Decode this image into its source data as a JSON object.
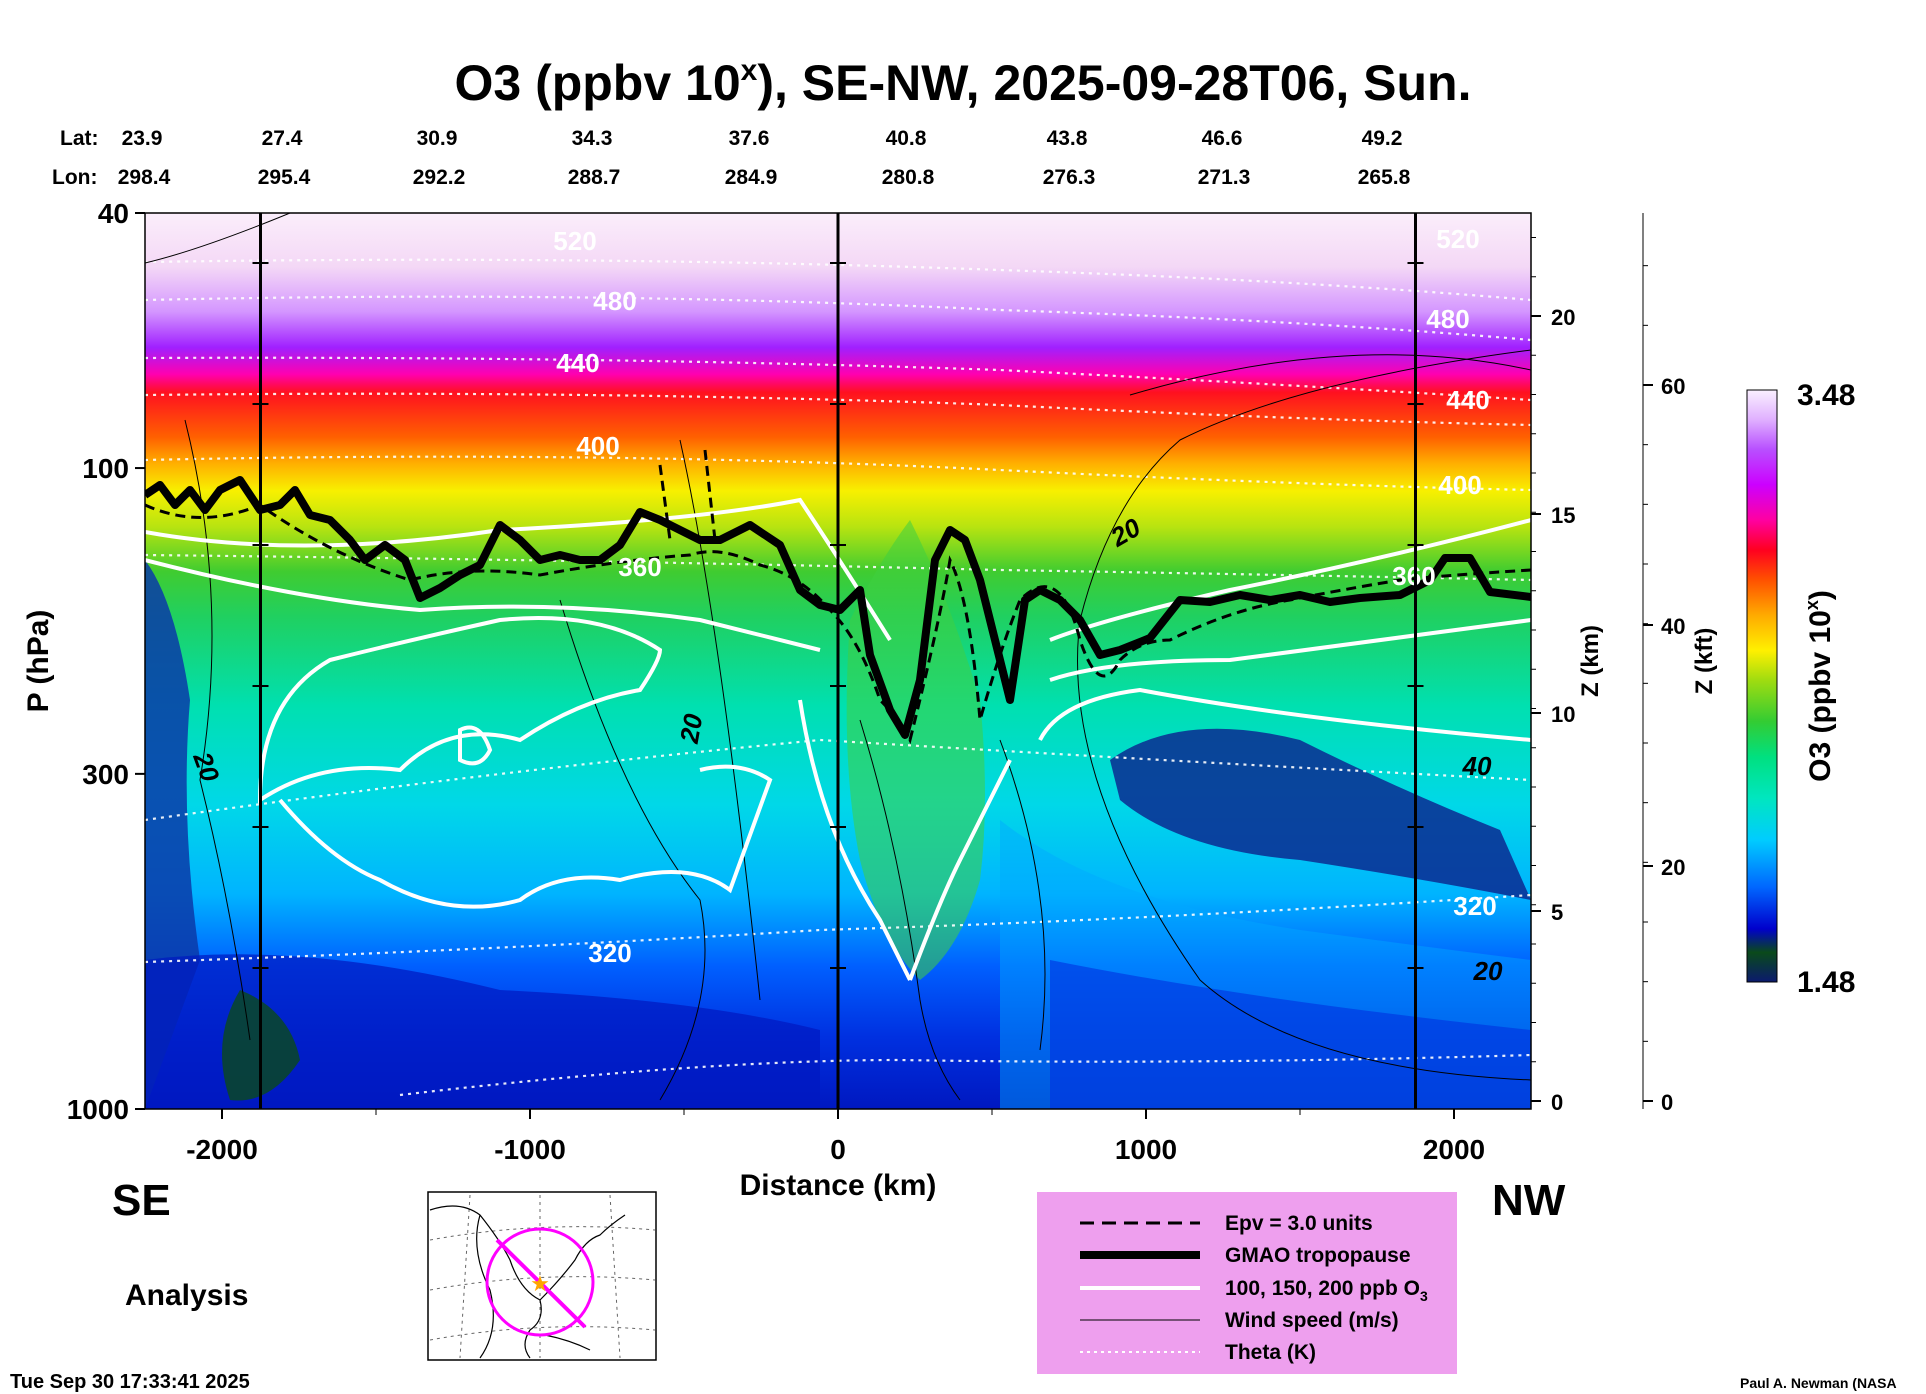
{
  "chart_data": {
    "type": "heatmap",
    "title": "O3 (ppbv 10",
    "title_sup": "x",
    "title_rest": "), SE-NW, 2025-09-28T06, Sun.",
    "xlabel": "Distance (km)",
    "ylabel": "P (hPa)",
    "y2label": "Z (km)",
    "y3label": "Z (kft)",
    "xlim": [
      -2250,
      2250
    ],
    "ylim_hpa": [
      1000,
      40
    ],
    "y_scale": "log",
    "x_ticks": [
      "-2000",
      "-1000",
      "0",
      "1000",
      "2000"
    ],
    "x_tick_values": [
      -2000,
      -1000,
      0,
      1000,
      2000
    ],
    "p_ticks": [
      "40",
      "100",
      "300",
      "1000"
    ],
    "p_tick_values": [
      40,
      100,
      300,
      1000
    ],
    "z_km_ticks": [
      "0",
      "5",
      "10",
      "15",
      "20"
    ],
    "z_kft_ticks": [
      "0",
      "20",
      "40",
      "60"
    ],
    "lat_label": "Lat:",
    "lon_label": "Lon:",
    "lat": [
      "23.9",
      "27.4",
      "30.9",
      "34.3",
      "37.6",
      "40.8",
      "43.8",
      "46.6",
      "49.2"
    ],
    "lon": [
      "298.4",
      "295.4",
      "292.2",
      "288.7",
      "284.9",
      "280.8",
      "276.3",
      "271.3",
      "265.8"
    ],
    "vertical_markers_km": [
      -1875,
      0,
      1875
    ],
    "colorbar": {
      "label": "O3 (ppbv 10",
      "label_sup": "x",
      "label_end": ")",
      "max": "3.48",
      "min": "1.48",
      "colors": [
        "#0b1a6e",
        "#0d2d8f",
        "#0a4a1a",
        "#1a5a1a",
        "#0000cc",
        "#0033ff",
        "#0066ff",
        "#00a0ff",
        "#00ccff",
        "#00e6e6",
        "#00e6b4",
        "#00e080",
        "#2ee05a",
        "#60e030",
        "#33cc33",
        "#70cc20",
        "#a0dc10",
        "#c8ec10",
        "#e8f010",
        "#fff000",
        "#ffd200",
        "#ffaa00",
        "#ff8000",
        "#ff5000",
        "#ff2000",
        "#ff0040",
        "#ff0090",
        "#ff00d0",
        "#cc00ff",
        "#a020ff",
        "#b850ff",
        "#cc80ff",
        "#dca0ff",
        "#e8c0ff",
        "#f2dcff",
        "#faf0ff"
      ]
    },
    "contour_labels": {
      "theta": [
        "520",
        "480",
        "440",
        "400",
        "360",
        "320",
        "520",
        "480",
        "440",
        "400",
        "360",
        "320"
      ],
      "wind": [
        "20",
        "20",
        "20",
        "40",
        "20"
      ]
    },
    "legend": [
      {
        "label": "Epv = 3.0 units",
        "style": "dashed"
      },
      {
        "label": "GMAO tropopause",
        "style": "thick"
      },
      {
        "label": "100, 150, 200 ppb O",
        "sub": "3",
        "style": "white"
      },
      {
        "label": "Wind speed (m/s)",
        "style": "thin"
      },
      {
        "label": "Theta (K)",
        "style": "dotted"
      }
    ],
    "legend_position": "bottom-right",
    "grid": false
  },
  "dir_left": "SE",
  "dir_right": "NW",
  "mode": "Analysis",
  "timestamp": "Tue Sep 30 17:33:41 2025",
  "credit": "Paul A. Newman (NASA",
  "colors": {
    "legend_bg": "#ee9fee",
    "map_line": "#ff00ff",
    "map_star": "#ffa500",
    "tropopause": "#000000"
  }
}
